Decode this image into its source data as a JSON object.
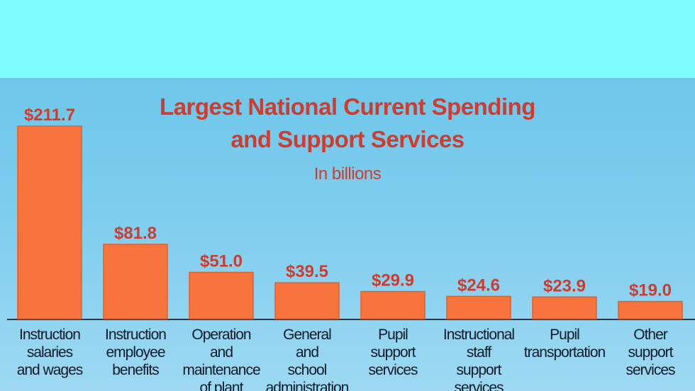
{
  "colors": {
    "bar": "#f7743d",
    "bar_edge": "#e0602c",
    "title": "#cf3b2d",
    "value_label": "#cf3b2d",
    "text": "#0d1a2a",
    "baseline": "#2a3848"
  },
  "chart_data": {
    "type": "bar",
    "title": "Largest National Current Spending",
    "title_line2": "and Support Services",
    "subtitle": "In billions",
    "xlabel": "",
    "ylabel": "",
    "ylim": [
      0,
      211.7
    ],
    "grid": false,
    "categories": [
      "Instruction salaries and wages",
      "Instruction employee benefits",
      "Operation and maintenance of plant",
      "General and school administration",
      "Pupil support services",
      "Instructional staff support services",
      "Pupil transportation",
      "Other support services"
    ],
    "category_lines": [
      [
        "Instruction",
        "salaries",
        "and wages"
      ],
      [
        "Instruction",
        "employee",
        "benefits"
      ],
      [
        "Operation",
        "and",
        "maintenance",
        "of plant"
      ],
      [
        "General",
        "and",
        "school",
        "administration"
      ],
      [
        "Pupil",
        "support",
        "services"
      ],
      [
        "Instructional",
        "staff",
        "support",
        "services"
      ],
      [
        "Pupil",
        "transportation"
      ],
      [
        "Other",
        "support",
        "services"
      ]
    ],
    "values": [
      211.7,
      81.8,
      51.0,
      39.5,
      29.9,
      24.6,
      23.9,
      19.0
    ],
    "value_labels": [
      "$211.7",
      "$81.8",
      "$51.0",
      "$39.5",
      "$29.9",
      "$24.6",
      "$23.9",
      "$19.0"
    ]
  }
}
